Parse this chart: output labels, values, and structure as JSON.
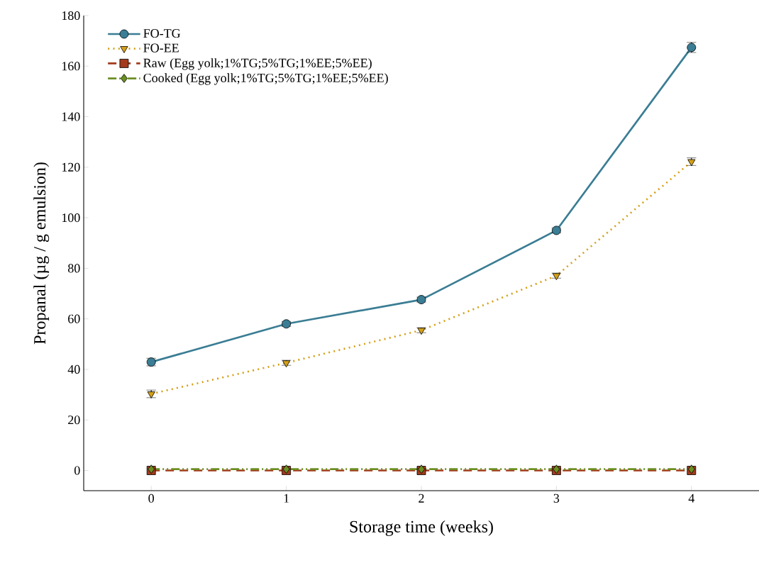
{
  "chart_data": {
    "type": "line",
    "xlabel": "Storage time (weeks)",
    "ylabel": "Propanal (µg / g emulsion)",
    "x": [
      0,
      1,
      2,
      3,
      4
    ],
    "xlim": [
      -0.5,
      4.5
    ],
    "xticks": [
      0,
      1,
      2,
      3,
      4
    ],
    "ylim": [
      -8,
      180
    ],
    "yticks": [
      0,
      20,
      40,
      60,
      80,
      100,
      120,
      140,
      160,
      180
    ],
    "grid": false,
    "legend": "top left",
    "series": [
      {
        "name": "FO-TG",
        "color": "#3a7d94",
        "marker": "circle",
        "line_style": "solid",
        "values": [
          42.9,
          58,
          67.6,
          95,
          167.4
        ],
        "errors": [
          1.5,
          1,
          1,
          1,
          2
        ]
      },
      {
        "name": "FO-EE",
        "color": "#d4a017",
        "marker": "triangle",
        "line_style": "dotted",
        "values": [
          30.3,
          42.6,
          55.5,
          77.1,
          122.2
        ],
        "errors": [
          1.5,
          1,
          1,
          1,
          1.5
        ]
      },
      {
        "name": "Raw (Egg yolk;1%TG;5%TG;1%EE;5%EE)",
        "color": "#a33a1c",
        "marker": "square",
        "line_style": "dashed",
        "values": [
          0,
          0,
          0,
          0,
          0
        ]
      },
      {
        "name": "Cooked (Egg yolk;1%TG;5%TG;1%EE;5%EE)",
        "color": "#6b8e23",
        "marker": "diamond",
        "line_style": "dashdotdotted",
        "values": [
          0.5,
          0.5,
          0.5,
          0.5,
          0.5
        ]
      }
    ]
  }
}
